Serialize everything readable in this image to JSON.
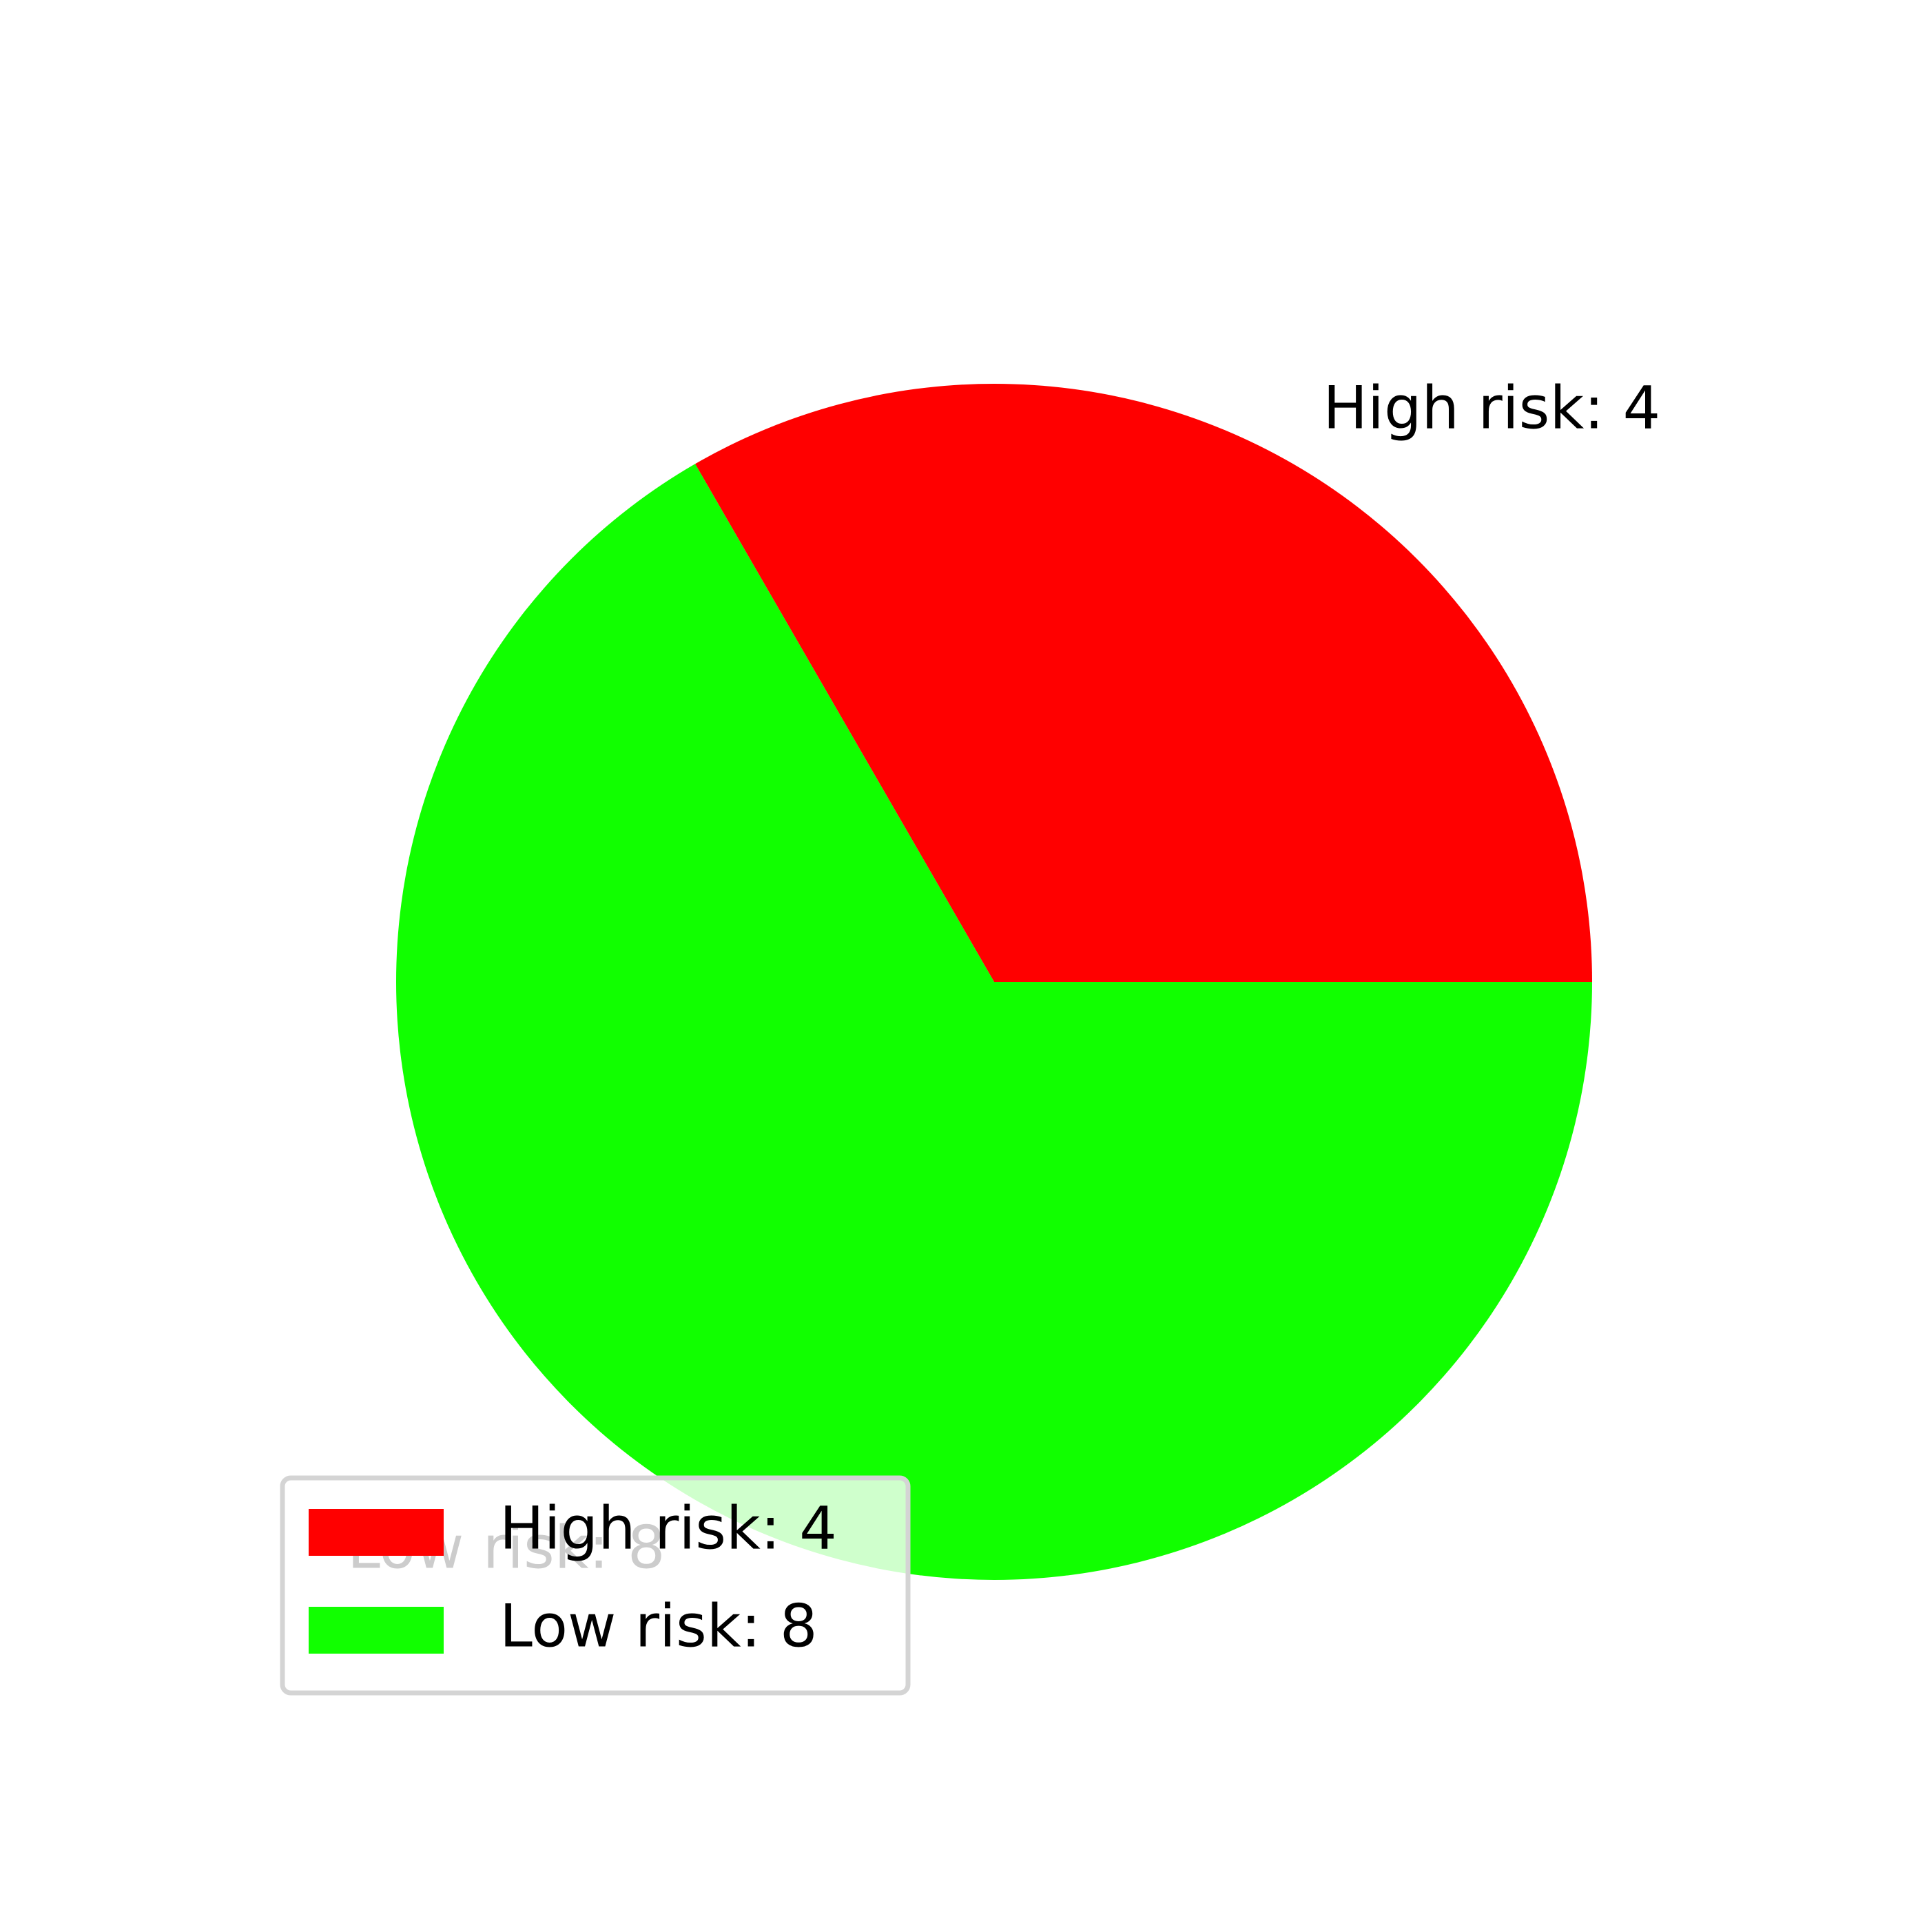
{
  "chart_data": {
    "type": "pie",
    "title": "",
    "start_angle_deg": 0,
    "direction": "counterclockwise",
    "categories": [
      "High risk: 4",
      "Low risk: 8"
    ],
    "values": [
      4,
      8
    ],
    "colors": [
      "#ff0000",
      "#11ff00"
    ],
    "slice_labels": [
      "High risk: 4",
      "Low risk: 8"
    ],
    "legend": {
      "placement": "lower-left",
      "entries": [
        "High risk: 4",
        "Low risk: 8"
      ]
    }
  }
}
